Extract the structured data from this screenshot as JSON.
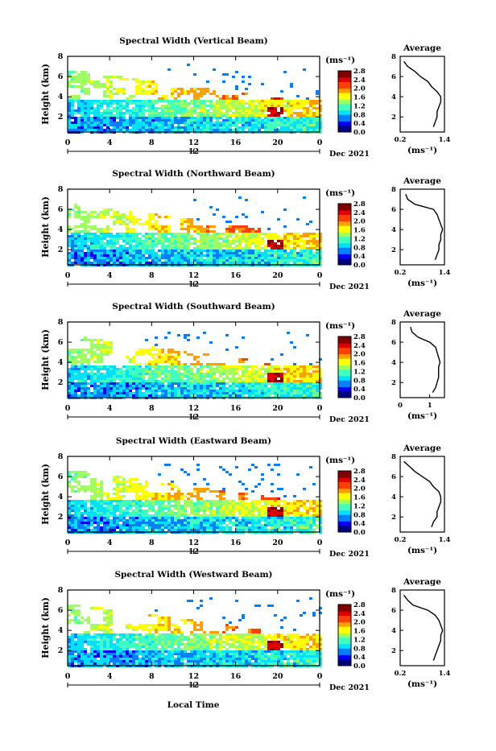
{
  "figure": {
    "bottom_xlabel": "Local Time",
    "date_label": "Dec 2021",
    "colorbar_unit_label": "(ms⁻¹)",
    "colorbar_ticks": [
      "2.8",
      "2.4",
      "2.0",
      "1.6",
      "1.2",
      "0.8",
      "0.4",
      "0.0"
    ],
    "colormap": [
      "#00007f",
      "#0000ff",
      "#0080ff",
      "#00e0ff",
      "#40ffbf",
      "#a0ff60",
      "#ffff00",
      "#ffa000",
      "#ff4000",
      "#e00000",
      "#800000"
    ]
  },
  "chart_data": [
    {
      "type": "heatmap",
      "title": "Spectral Width (Vertical Beam)",
      "xlabel": "Local Time",
      "ylabel": "Height (km)",
      "x_ticks": [
        "0",
        "4",
        "8",
        "12",
        "16",
        "20",
        "0"
      ],
      "x_secondary_tick": "12",
      "y_ticks": [
        "2",
        "4",
        "6",
        "8"
      ],
      "xlim": [
        0,
        24
      ],
      "ylim": [
        0.5,
        8
      ],
      "colorbar": {
        "label": "(ms⁻¹)",
        "range": [
          0.0,
          2.8
        ],
        "ticks": [
          "2.8",
          "2.4",
          "2.0",
          "1.6",
          "1.2",
          "0.8",
          "0.4",
          "0.0"
        ]
      },
      "profile": {
        "title": "Average",
        "xlabel": "(ms⁻¹)",
        "x_ticks": [
          "0.2",
          "1.4"
        ],
        "xlim": [
          0.2,
          1.4
        ],
        "y_ticks": [
          "2",
          "4",
          "6",
          "8"
        ],
        "ylim": [
          0.5,
          8
        ],
        "height": [
          1.0,
          1.5,
          2.0,
          2.5,
          3.0,
          3.5,
          4.0,
          4.5,
          5.0,
          5.5,
          6.0,
          6.5,
          7.0,
          7.5
        ],
        "width": [
          1.1,
          1.15,
          1.2,
          1.2,
          1.25,
          1.3,
          1.3,
          1.2,
          1.05,
          0.95,
          0.75,
          0.6,
          0.4,
          0.3
        ]
      }
    },
    {
      "type": "heatmap",
      "title": "Spectral Width (Northward Beam)",
      "xlabel": "Local Time",
      "ylabel": "Height (km)",
      "x_ticks": [
        "0",
        "4",
        "8",
        "12",
        "16",
        "20",
        "0"
      ],
      "x_secondary_tick": "12",
      "y_ticks": [
        "2",
        "4",
        "6",
        "8"
      ],
      "xlim": [
        0,
        24
      ],
      "ylim": [
        0.5,
        8
      ],
      "colorbar": {
        "label": "(ms⁻¹)",
        "range": [
          0.0,
          2.8
        ],
        "ticks": [
          "2.8",
          "2.4",
          "2.0",
          "1.6",
          "1.2",
          "0.8",
          "0.4",
          "0.0"
        ]
      },
      "profile": {
        "title": "Average",
        "xlabel": "(ms⁻¹)",
        "x_ticks": [
          "0.2",
          "1.4"
        ],
        "xlim": [
          0.2,
          1.4
        ],
        "y_ticks": [
          "2",
          "4",
          "6",
          "8"
        ],
        "ylim": [
          0.5,
          8
        ],
        "height": [
          1.0,
          1.5,
          2.0,
          2.5,
          3.0,
          3.5,
          4.0,
          4.5,
          5.0,
          5.5,
          6.0,
          6.5,
          7.0,
          7.5
        ],
        "width": [
          1.15,
          1.2,
          1.25,
          1.25,
          1.3,
          1.3,
          1.35,
          1.3,
          1.25,
          1.2,
          1.1,
          0.6,
          0.4,
          0.35
        ]
      }
    },
    {
      "type": "heatmap",
      "title": "Spectral Width (Southward Beam)",
      "xlabel": "Local Time",
      "ylabel": "Height (km)",
      "x_ticks": [
        "0",
        "4",
        "8",
        "12",
        "16",
        "20",
        "0"
      ],
      "x_secondary_tick": "12",
      "y_ticks": [
        "2",
        "4",
        "6",
        "8"
      ],
      "xlim": [
        0,
        24
      ],
      "ylim": [
        0.5,
        8
      ],
      "colorbar": {
        "label": "(ms⁻¹)",
        "range": [
          0.0,
          2.8
        ],
        "ticks": [
          "2.8",
          "2.4",
          "2.0",
          "1.6",
          "1.2",
          "0.8",
          "0.4",
          "0.0"
        ]
      },
      "profile": {
        "title": "Average",
        "xlabel": "(ms⁻¹)",
        "x_ticks": [
          "0",
          "1"
        ],
        "xlim": [
          0,
          1.5
        ],
        "y_ticks": [
          "2",
          "4",
          "6",
          "8"
        ],
        "ylim": [
          0.5,
          8
        ],
        "height": [
          1.0,
          1.5,
          2.0,
          2.5,
          3.0,
          3.5,
          4.0,
          4.5,
          5.0,
          5.5,
          6.0,
          6.5,
          7.0,
          7.5
        ],
        "width": [
          1.1,
          1.2,
          1.25,
          1.3,
          1.3,
          1.3,
          1.35,
          1.3,
          1.25,
          1.2,
          1.0,
          0.6,
          0.4,
          0.35
        ]
      }
    },
    {
      "type": "heatmap",
      "title": "Spectral Width (Eastward Beam)",
      "xlabel": "Local Time",
      "ylabel": "Height (km)",
      "x_ticks": [
        "0",
        "4",
        "8",
        "12",
        "16",
        "20",
        "0"
      ],
      "x_secondary_tick": "12",
      "y_ticks": [
        "2",
        "4",
        "6",
        "8"
      ],
      "xlim": [
        0,
        24
      ],
      "ylim": [
        0.5,
        8
      ],
      "colorbar": {
        "label": "(ms⁻¹)",
        "range": [
          0.0,
          2.8
        ],
        "ticks": [
          "2.8",
          "2.4",
          "2.0",
          "1.6",
          "1.2",
          "0.8",
          "0.4",
          "0.0"
        ]
      },
      "profile": {
        "title": "Average",
        "xlabel": "(ms⁻¹)",
        "x_ticks": [
          "0.2",
          "1.4"
        ],
        "xlim": [
          0.2,
          1.4
        ],
        "y_ticks": [
          "2",
          "4",
          "6",
          "8"
        ],
        "ylim": [
          0.5,
          8
        ],
        "height": [
          1.0,
          1.5,
          2.0,
          2.5,
          3.0,
          3.5,
          4.0,
          4.5,
          5.0,
          5.5,
          6.0,
          6.5,
          7.0,
          7.5
        ],
        "width": [
          1.05,
          1.1,
          1.2,
          1.2,
          1.25,
          1.3,
          1.3,
          1.25,
          1.1,
          1.0,
          0.8,
          0.6,
          0.45,
          0.3
        ]
      }
    },
    {
      "type": "heatmap",
      "title": "Spectral Width (Westward Beam)",
      "xlabel": "Local Time",
      "ylabel": "Height (km)",
      "x_ticks": [
        "0",
        "4",
        "8",
        "12",
        "16",
        "20",
        "0"
      ],
      "x_secondary_tick": "12",
      "y_ticks": [
        "2",
        "4",
        "6",
        "8"
      ],
      "xlim": [
        0,
        24
      ],
      "ylim": [
        0.5,
        8
      ],
      "colorbar": {
        "label": "(ms⁻¹)",
        "range": [
          0.0,
          2.8
        ],
        "ticks": [
          "2.8",
          "2.4",
          "2.0",
          "1.6",
          "1.2",
          "0.8",
          "0.4",
          "0.0"
        ]
      },
      "profile": {
        "title": "Average",
        "xlabel": "(ms⁻¹)",
        "x_ticks": [
          "0.2",
          "1.4"
        ],
        "xlim": [
          0.2,
          1.4
        ],
        "y_ticks": [
          "2",
          "4",
          "6",
          "8"
        ],
        "ylim": [
          0.5,
          8
        ],
        "height": [
          1.0,
          1.5,
          2.0,
          2.5,
          3.0,
          3.5,
          4.0,
          4.5,
          5.0,
          5.5,
          6.0,
          6.5,
          7.0,
          7.5
        ],
        "width": [
          1.1,
          1.15,
          1.2,
          1.25,
          1.3,
          1.3,
          1.35,
          1.3,
          1.25,
          1.15,
          0.95,
          0.55,
          0.4,
          0.3
        ]
      }
    }
  ]
}
